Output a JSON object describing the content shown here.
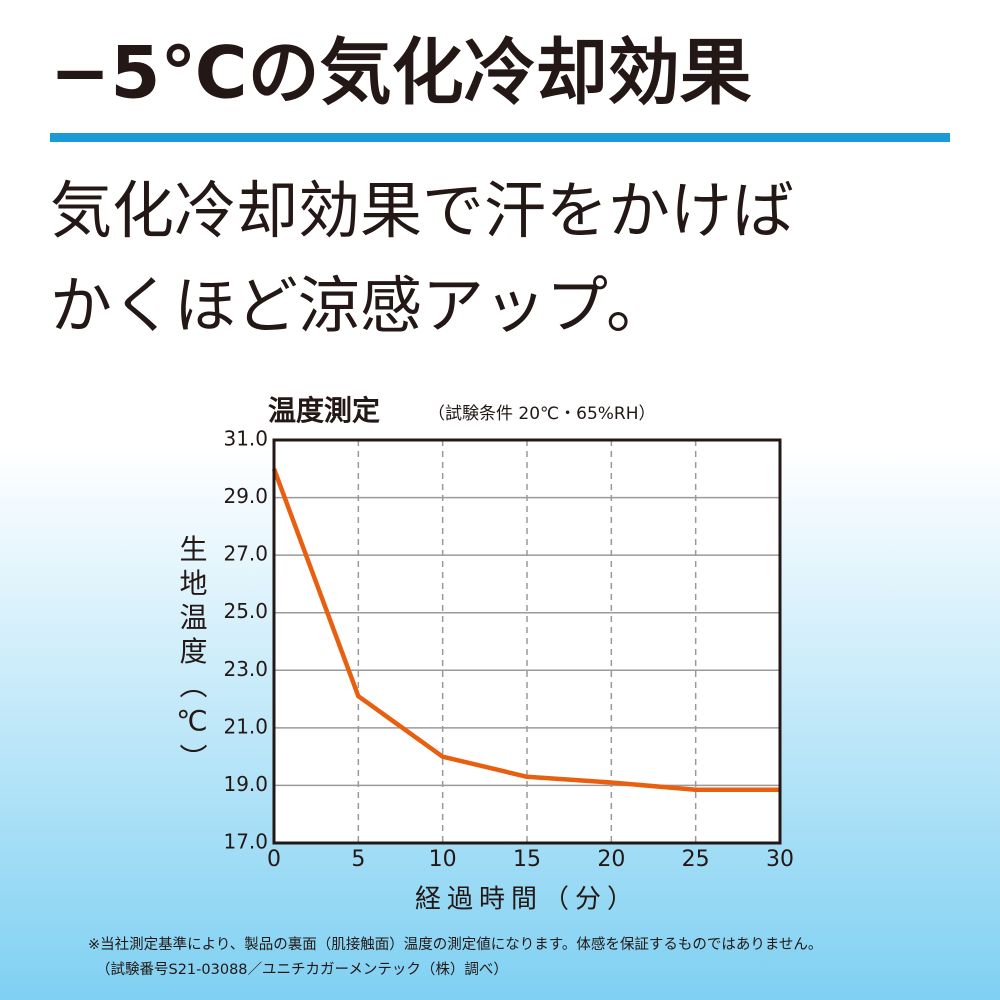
{
  "header": {
    "title": "−5℃の気化冷却効果",
    "lines": [
      "気化冷却効果で汗をかけば",
      "かくほど涼感アップ。"
    ]
  },
  "chart_data": {
    "type": "line",
    "title": "温度測定",
    "subtitle": "（試験条件 20℃・65%RH）",
    "x_label": "経過時間（分）",
    "y_label": "生地温度（℃）",
    "x": [
      0,
      5,
      10,
      15,
      20,
      25,
      30
    ],
    "series": [
      {
        "name": "生地温度",
        "color": "#e8600f",
        "values": [
          30.0,
          22.1,
          20.0,
          19.3,
          19.1,
          18.85,
          18.85
        ]
      }
    ],
    "xlim": [
      0,
      30
    ],
    "xticks": [
      0,
      5,
      10,
      15,
      20,
      25,
      30
    ],
    "ylim": [
      17,
      31
    ],
    "yticks": [
      {
        "value": 17,
        "label": "17.0"
      },
      {
        "value": 19,
        "label": "19.0"
      },
      {
        "value": 21,
        "label": "21.0"
      },
      {
        "value": 23,
        "label": "23.0"
      },
      {
        "value": 25,
        "label": "25.0"
      },
      {
        "value": 27,
        "label": "27.0"
      },
      {
        "value": 29,
        "label": "29.0"
      },
      {
        "value": 31,
        "label": "31.0"
      }
    ],
    "grid": true
  },
  "footnotes": [
    "※当社測定基準により、製品の裏面（肌接触面）温度の測定値になります。体感を保証するものではありません。",
    "（試験番号S21-03088／ユニチカガーメンテック（株）調べ）"
  ]
}
